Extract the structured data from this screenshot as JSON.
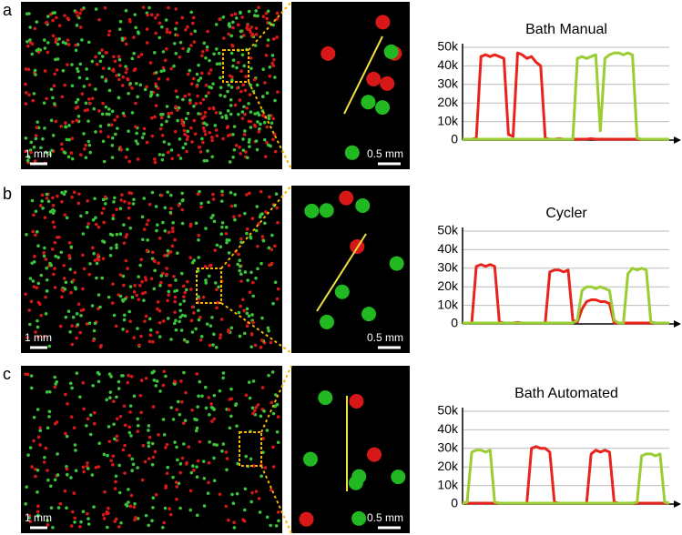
{
  "panels": [
    {
      "label": "a",
      "scale_left": "1 mm",
      "scale_right": "0.5 mm"
    },
    {
      "label": "b",
      "scale_left": "1 mm",
      "scale_right": "0.5 mm"
    },
    {
      "label": "c",
      "scale_left": "1 mm",
      "scale_right": "0.5 mm"
    }
  ],
  "chart_data": [
    {
      "type": "line",
      "title": "Bath Manual",
      "ylim": [
        0,
        50000
      ],
      "yticks": [
        0,
        {
          "value": 10000,
          "label": "10k"
        },
        {
          "value": 20000,
          "label": "20k"
        },
        {
          "value": 30000,
          "label": "30k"
        },
        {
          "value": 40000,
          "label": "40k"
        },
        {
          "value": 50000,
          "label": "50k"
        }
      ],
      "grid": true,
      "series": [
        {
          "color": "#e8241c",
          "values": [
            500,
            500,
            500,
            1000,
            45000,
            46000,
            45000,
            46000,
            45000,
            44000,
            3000,
            2000,
            47000,
            46000,
            44000,
            45000,
            42000,
            40000,
            1000,
            500,
            500,
            800,
            500,
            500,
            500,
            500,
            500,
            500,
            800,
            500,
            500,
            500,
            500,
            500,
            500,
            500,
            500,
            500,
            500,
            500,
            500,
            500,
            500,
            500,
            500,
            500
          ]
        },
        {
          "color": "#9acd32",
          "values": [
            500,
            500,
            500,
            500,
            500,
            500,
            500,
            500,
            500,
            500,
            500,
            500,
            500,
            500,
            500,
            500,
            500,
            500,
            500,
            500,
            500,
            500,
            500,
            500,
            500,
            44000,
            45000,
            44000,
            45000,
            46000,
            5000,
            44000,
            46000,
            47000,
            47000,
            46000,
            47000,
            46000,
            1000,
            500,
            500,
            500,
            500,
            500,
            500,
            500
          ]
        }
      ]
    },
    {
      "type": "line",
      "title": "Cycler",
      "ylim": [
        0,
        50000
      ],
      "yticks": [
        0,
        {
          "value": 10000,
          "label": "10k"
        },
        {
          "value": 20000,
          "label": "20k"
        },
        {
          "value": 30000,
          "label": "30k"
        },
        {
          "value": 40000,
          "label": "40k"
        },
        {
          "value": 50000,
          "label": "50k"
        }
      ],
      "grid": true,
      "series": [
        {
          "color": "#e8241c",
          "values": [
            500,
            500,
            500,
            31000,
            32000,
            31000,
            32000,
            31000,
            1000,
            500,
            500,
            500,
            800,
            500,
            500,
            500,
            500,
            500,
            500,
            28000,
            29000,
            29000,
            28000,
            29000,
            2000,
            1000,
            8000,
            12000,
            13000,
            13000,
            12000,
            12000,
            11000,
            500,
            500,
            500,
            500,
            500,
            500,
            500,
            500,
            500,
            500,
            500,
            500,
            500
          ]
        },
        {
          "color": "#9acd32",
          "values": [
            500,
            500,
            500,
            500,
            500,
            500,
            500,
            500,
            500,
            500,
            500,
            500,
            500,
            500,
            500,
            500,
            500,
            500,
            500,
            500,
            500,
            500,
            500,
            500,
            500,
            2000,
            18000,
            20000,
            20000,
            19000,
            20000,
            19000,
            18000,
            2000,
            500,
            500,
            27000,
            30000,
            29000,
            30000,
            29000,
            1000,
            500,
            500,
            500,
            500
          ]
        }
      ]
    },
    {
      "type": "line",
      "title": "Bath Automated",
      "ylim": [
        0,
        50000
      ],
      "yticks": [
        0,
        {
          "value": 10000,
          "label": "10k"
        },
        {
          "value": 20000,
          "label": "20k"
        },
        {
          "value": 30000,
          "label": "30k"
        },
        {
          "value": 40000,
          "label": "40k"
        },
        {
          "value": 50000,
          "label": "50k"
        }
      ],
      "grid": true,
      "series": [
        {
          "color": "#e8241c",
          "values": [
            500,
            500,
            500,
            500,
            500,
            500,
            500,
            500,
            500,
            500,
            500,
            500,
            500,
            500,
            500,
            30000,
            31000,
            30000,
            30000,
            28000,
            1000,
            500,
            500,
            500,
            500,
            500,
            500,
            500,
            27000,
            29000,
            28000,
            29000,
            28000,
            1000,
            500,
            500,
            500,
            500,
            500,
            500,
            500,
            500,
            500,
            500,
            500,
            500
          ]
        },
        {
          "color": "#9acd32",
          "values": [
            500,
            1000,
            28000,
            29000,
            29000,
            28000,
            29000,
            1000,
            500,
            500,
            500,
            500,
            500,
            500,
            500,
            500,
            500,
            500,
            500,
            500,
            500,
            500,
            500,
            500,
            500,
            500,
            500,
            500,
            500,
            500,
            500,
            500,
            500,
            500,
            500,
            500,
            500,
            500,
            1000,
            26000,
            27000,
            27000,
            26000,
            27000,
            1000,
            500
          ]
        }
      ]
    }
  ]
}
